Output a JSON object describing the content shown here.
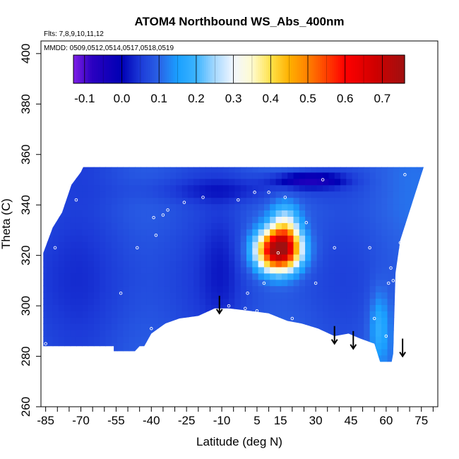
{
  "chart_data": {
    "type": "heatmap",
    "title": "ATOM4 Northbound WS_Abs_400nm",
    "notes": {
      "flights": "Flts: 7,8,9,10,11,12",
      "dates": "MMDD: 0509,0512,0514,0517,0518,0519"
    },
    "xlabel": "Latitude (deg N)",
    "ylabel": "Theta (C)",
    "xlim": [
      -87,
      82
    ],
    "ylim": [
      260,
      405
    ],
    "x_ticks": [
      -85,
      -70,
      -55,
      -40,
      -25,
      -10,
      5,
      15,
      30,
      45,
      60,
      75
    ],
    "x_minor_ticks": [
      -80,
      -75,
      -65,
      -60,
      -50,
      -45,
      -35,
      -30,
      -20,
      -15,
      -5,
      0,
      10,
      20,
      25,
      35,
      40,
      50,
      55,
      65,
      70,
      80
    ],
    "y_ticks": [
      260,
      280,
      300,
      320,
      340,
      360,
      380,
      400
    ],
    "colorbar": {
      "range": [
        -0.13,
        0.76
      ],
      "ticks": [
        -0.1,
        0.0,
        0.1,
        0.2,
        0.3,
        0.4,
        0.5,
        0.6,
        0.7
      ],
      "tick_labels": [
        "-0.1",
        "0.0",
        "0.1",
        "0.2",
        "0.3",
        "0.4",
        "0.5",
        "0.6",
        "0.7"
      ],
      "color_stops": [
        {
          "v": -0.13,
          "c": "#7f1fe6"
        },
        {
          "v": -0.08,
          "c": "#2a00c0"
        },
        {
          "v": 0.0,
          "c": "#0000b4"
        },
        {
          "v": 0.05,
          "c": "#1c3ad8"
        },
        {
          "v": 0.1,
          "c": "#2a62e6"
        },
        {
          "v": 0.15,
          "c": "#1aa0ff"
        },
        {
          "v": 0.2,
          "c": "#3cb4ff"
        },
        {
          "v": 0.25,
          "c": "#a6d8ff"
        },
        {
          "v": 0.3,
          "c": "#f2f7ff"
        },
        {
          "v": 0.35,
          "c": "#fffbd0"
        },
        {
          "v": 0.4,
          "c": "#ffe24a"
        },
        {
          "v": 0.45,
          "c": "#ffb000"
        },
        {
          "v": 0.5,
          "c": "#ff8000"
        },
        {
          "v": 0.55,
          "c": "#ff4000"
        },
        {
          "v": 0.6,
          "c": "#ff0000"
        },
        {
          "v": 0.68,
          "c": "#d00000"
        },
        {
          "v": 0.76,
          "c": "#a01010"
        }
      ]
    },
    "field": {
      "background_value": 0.06,
      "boundary": [
        [
          -86,
          284
        ],
        [
          -86,
          321
        ],
        [
          -82,
          331
        ],
        [
          -78,
          337
        ],
        [
          -74,
          348
        ],
        [
          -70,
          353
        ],
        [
          -69,
          355
        ],
        [
          76,
          355
        ],
        [
          66,
          326
        ],
        [
          64,
          313
        ],
        [
          63,
          281
        ],
        [
          62,
          276
        ],
        [
          58,
          276
        ],
        [
          55,
          285
        ],
        [
          49,
          287
        ],
        [
          44,
          289
        ],
        [
          38,
          288
        ],
        [
          31,
          291
        ],
        [
          24,
          293
        ],
        [
          18,
          294
        ],
        [
          10,
          297
        ],
        [
          2,
          298
        ],
        [
          -7,
          299
        ],
        [
          -13,
          299
        ],
        [
          -20,
          296
        ],
        [
          -28,
          295
        ],
        [
          -34,
          293
        ],
        [
          -40,
          289
        ],
        [
          -43,
          284
        ],
        [
          -45,
          284
        ],
        [
          -47,
          282
        ],
        [
          -56,
          282
        ],
        [
          -56,
          284
        ]
      ],
      "features": [
        {
          "kind": "gaussian",
          "x": 14,
          "y": 322,
          "sx": 9,
          "sy": 8,
          "amp": 0.64
        },
        {
          "kind": "gaussian",
          "x": 17,
          "y": 330,
          "sx": 6,
          "sy": 10,
          "amp": 0.2
        },
        {
          "kind": "gaussian",
          "x": 57,
          "y": 292,
          "sx": 4,
          "sy": 14,
          "amp": 0.09
        },
        {
          "kind": "gaussian",
          "x": 27,
          "y": 350,
          "sx": 15,
          "sy": 3,
          "amp": -0.14
        },
        {
          "kind": "gaussian",
          "x": -5,
          "y": 346,
          "sx": 40,
          "sy": 5,
          "amp": -0.05
        },
        {
          "kind": "gaussian",
          "x": -10,
          "y": 315,
          "sx": 8,
          "sy": 25,
          "amp": -0.03
        }
      ],
      "sample_points": [
        [
          -85,
          285
        ],
        [
          -81,
          323
        ],
        [
          -72,
          342
        ],
        [
          -53,
          305
        ],
        [
          -46,
          323
        ],
        [
          -40,
          291
        ],
        [
          -39,
          335
        ],
        [
          -38,
          328
        ],
        [
          -35,
          336
        ],
        [
          -33,
          338
        ],
        [
          -26,
          341
        ],
        [
          -18,
          343
        ],
        [
          -7,
          300
        ],
        [
          -3,
          342
        ],
        [
          0,
          299
        ],
        [
          1,
          305
        ],
        [
          4,
          345
        ],
        [
          5,
          298
        ],
        [
          7,
          296
        ],
        [
          8,
          309
        ],
        [
          10,
          345
        ],
        [
          14,
          321
        ],
        [
          17,
          343
        ],
        [
          20,
          295
        ],
        [
          26,
          333
        ],
        [
          30,
          309
        ],
        [
          33,
          350
        ],
        [
          38,
          323
        ],
        [
          46,
          285
        ],
        [
          53,
          323
        ],
        [
          55,
          295
        ],
        [
          60,
          288
        ],
        [
          61,
          309
        ],
        [
          62,
          315
        ],
        [
          63,
          310
        ],
        [
          66,
          325
        ],
        [
          68,
          352
        ]
      ],
      "arrows": [
        {
          "x": -11,
          "y_top": 304,
          "y_bottom": 297
        },
        {
          "x": 38,
          "y_top": 292,
          "y_bottom": 285
        },
        {
          "x": 46,
          "y_top": 290,
          "y_bottom": 283
        },
        {
          "x": 67,
          "y_top": 287,
          "y_bottom": 280
        }
      ]
    }
  }
}
